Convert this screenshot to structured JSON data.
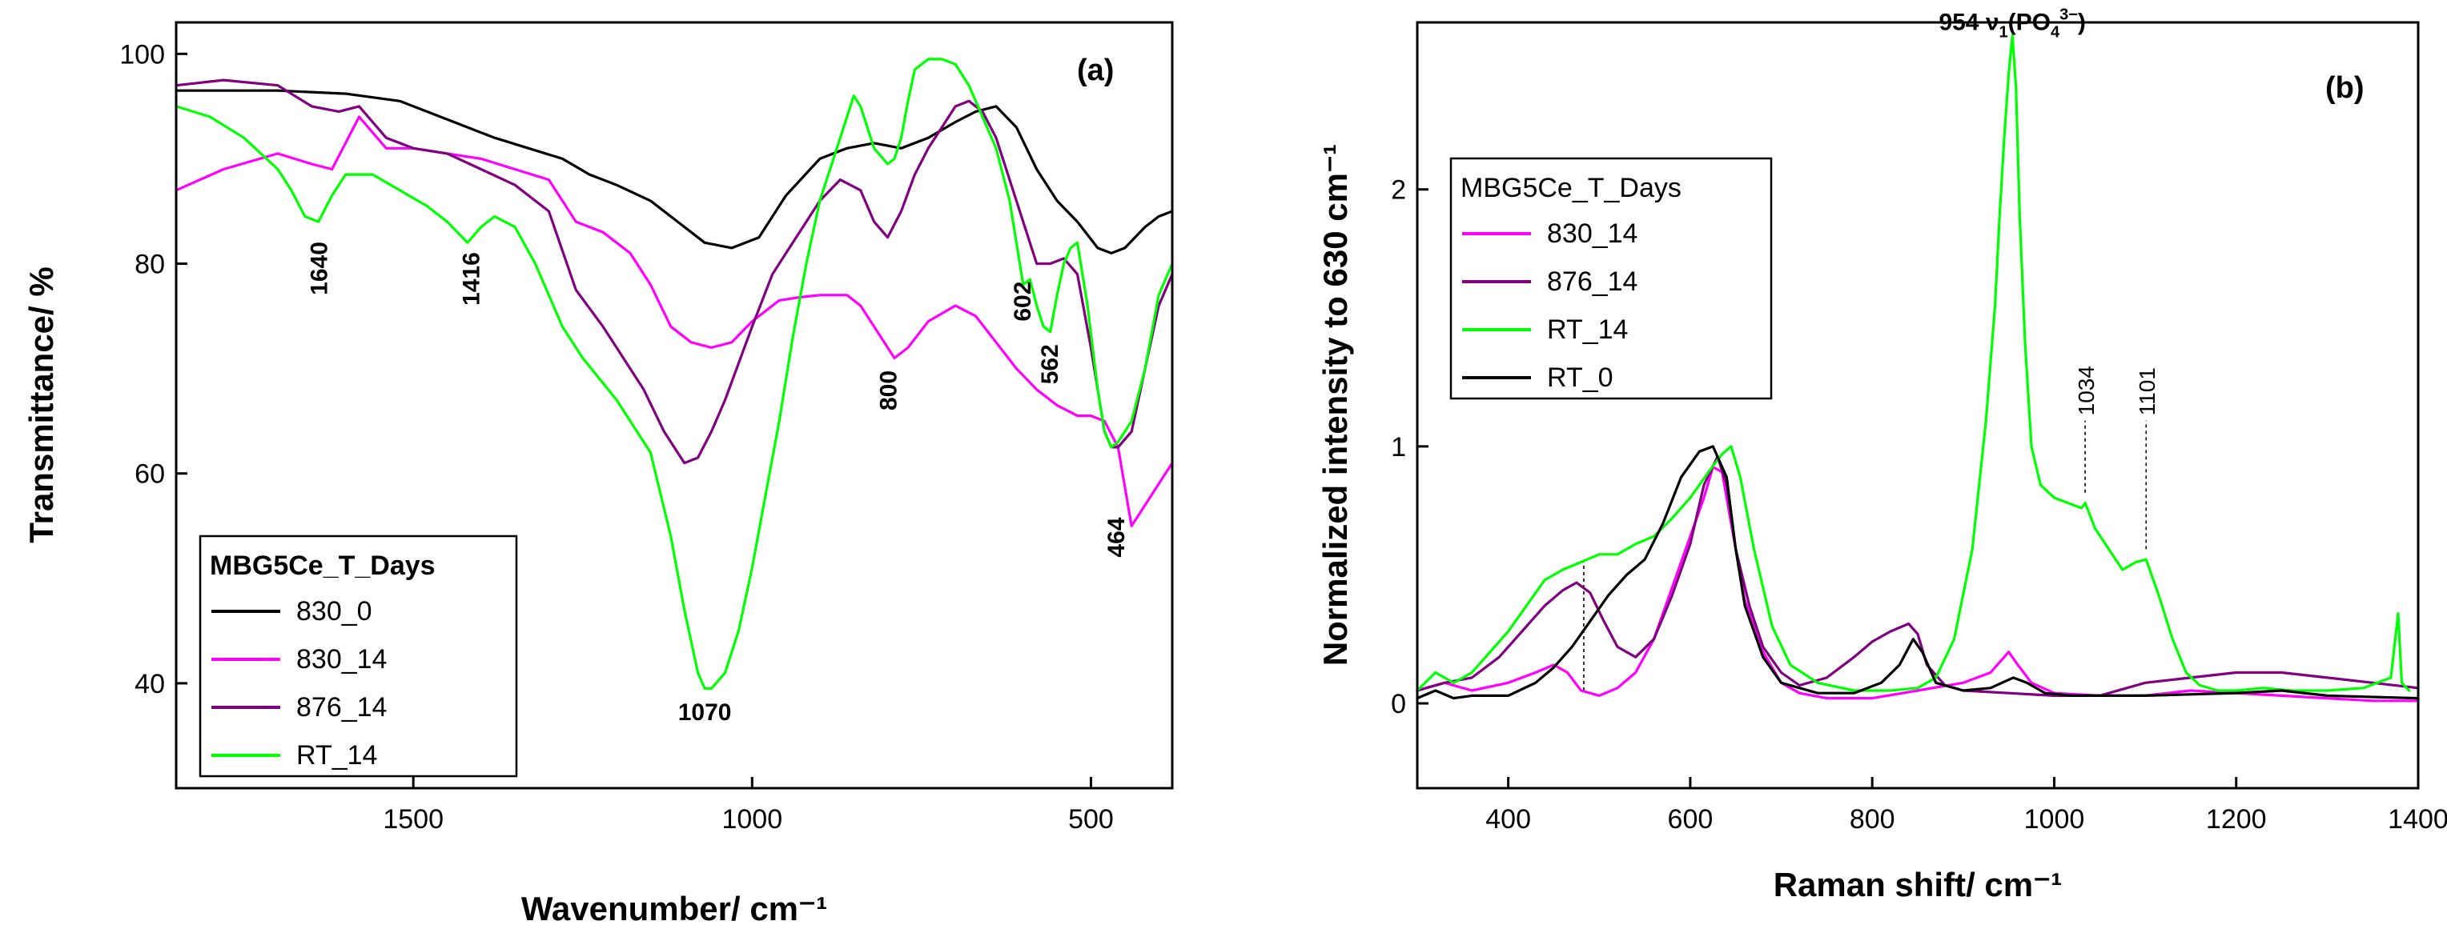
{
  "chart_data": [
    {
      "panel_label": "(a)",
      "type": "line",
      "title": "",
      "xlabel": "Wavenumber/ cm⁻¹",
      "ylabel": "Transmittance/ %",
      "xlim": [
        1850,
        380
      ],
      "ylim": [
        30,
        103
      ],
      "xticks": [
        1500,
        1000,
        500
      ],
      "yticks": [
        40,
        60,
        80,
        100
      ],
      "legend": {
        "title": "MBG5Ce_T_Days",
        "position": "bottom-left",
        "entries": [
          "830_0",
          "830_14",
          "876_14",
          "RT_14"
        ]
      },
      "annotations": [
        {
          "text": "1640",
          "x": 1640,
          "y": 77,
          "rotate": true
        },
        {
          "text": "1416",
          "x": 1416,
          "y": 76,
          "rotate": true
        },
        {
          "text": "1070",
          "x": 1070,
          "y": 36.5,
          "rotate": false
        },
        {
          "text": "800",
          "x": 800,
          "y": 66,
          "rotate": true
        },
        {
          "text": "602",
          "x": 602,
          "y": 74.5,
          "rotate": true
        },
        {
          "text": "562",
          "x": 562,
          "y": 68.5,
          "rotate": true
        },
        {
          "text": "464",
          "x": 464,
          "y": 52,
          "rotate": true
        }
      ],
      "series": [
        {
          "name": "830_0",
          "color": "#000000",
          "x": [
            1850,
            1700,
            1600,
            1520,
            1480,
            1420,
            1380,
            1330,
            1280,
            1240,
            1200,
            1150,
            1100,
            1070,
            1030,
            990,
            950,
            900,
            860,
            820,
            780,
            740,
            700,
            670,
            640,
            610,
            580,
            550,
            520,
            490,
            470,
            450,
            420,
            400,
            380
          ],
          "y": [
            96.5,
            96.5,
            96.2,
            95.5,
            94.5,
            93,
            92,
            91,
            90,
            88.5,
            87.5,
            86,
            83.5,
            82,
            81.5,
            82.5,
            86.5,
            90,
            91,
            91.5,
            91,
            92,
            93.5,
            94.5,
            95,
            93,
            89,
            86,
            84,
            81.5,
            81,
            81.5,
            83.5,
            84.5,
            85
          ]
        },
        {
          "name": "830_14",
          "color": "#ff00ff",
          "x": [
            1850,
            1780,
            1700,
            1650,
            1620,
            1580,
            1540,
            1500,
            1450,
            1400,
            1350,
            1300,
            1260,
            1220,
            1180,
            1150,
            1120,
            1090,
            1060,
            1030,
            1000,
            960,
            930,
            900,
            860,
            840,
            810,
            790,
            770,
            740,
            700,
            670,
            640,
            610,
            580,
            550,
            520,
            500,
            480,
            460,
            440,
            400,
            380
          ],
          "y": [
            87,
            89,
            90.5,
            89.5,
            89,
            94,
            91,
            91,
            90.5,
            90,
            89,
            88,
            84,
            83,
            81,
            78,
            74,
            72.5,
            72,
            72.5,
            74.5,
            76.5,
            76.8,
            77,
            77,
            76,
            73,
            71,
            72,
            74.5,
            76,
            75,
            72.5,
            70,
            68,
            66.5,
            65.5,
            65.5,
            65,
            62.5,
            55,
            59,
            61
          ]
        },
        {
          "name": "876_14",
          "color": "#800080",
          "x": [
            1850,
            1780,
            1700,
            1650,
            1610,
            1580,
            1540,
            1500,
            1450,
            1400,
            1350,
            1300,
            1260,
            1220,
            1190,
            1160,
            1130,
            1100,
            1080,
            1060,
            1040,
            1000,
            970,
            940,
            900,
            870,
            840,
            820,
            800,
            780,
            760,
            740,
            720,
            700,
            680,
            660,
            640,
            620,
            600,
            580,
            560,
            540,
            520,
            500,
            480,
            470,
            460,
            440,
            420,
            400,
            380
          ],
          "y": [
            97,
            97.5,
            97,
            95,
            94.5,
            95,
            92,
            91,
            90.5,
            89,
            87.5,
            85,
            77.5,
            74,
            71,
            68,
            64,
            61,
            61.5,
            64,
            67,
            74,
            79,
            82,
            86,
            88,
            87,
            84,
            82.5,
            85,
            88.5,
            91,
            93,
            95,
            95.5,
            94.5,
            92,
            88,
            84,
            80,
            80,
            80.5,
            79,
            72,
            64,
            62.5,
            62.5,
            64,
            70,
            76,
            79
          ]
        },
        {
          "name": "RT_14",
          "color": "#00ff00",
          "x": [
            1850,
            1800,
            1750,
            1700,
            1680,
            1660,
            1640,
            1620,
            1600,
            1560,
            1520,
            1480,
            1450,
            1420,
            1400,
            1380,
            1350,
            1320,
            1300,
            1280,
            1250,
            1200,
            1150,
            1120,
            1100,
            1080,
            1070,
            1060,
            1040,
            1020,
            1000,
            980,
            960,
            940,
            920,
            900,
            880,
            860,
            850,
            840,
            820,
            800,
            790,
            780,
            770,
            760,
            740,
            720,
            700,
            680,
            660,
            640,
            620,
            610,
            600,
            590,
            580,
            570,
            560,
            550,
            540,
            530,
            520,
            505,
            490,
            480,
            470,
            460,
            440,
            420,
            400,
            380
          ],
          "y": [
            95,
            94,
            92,
            89,
            87,
            84.5,
            84,
            86.5,
            88.5,
            88.5,
            87,
            85.5,
            84,
            82,
            83.5,
            84.5,
            83.5,
            80,
            77,
            74,
            71,
            67,
            62,
            54,
            47,
            41,
            39.5,
            39.5,
            41,
            45,
            51,
            58,
            65,
            73,
            80,
            86,
            90,
            94,
            96,
            95,
            91,
            89.5,
            90,
            92,
            95.5,
            98.5,
            99.5,
            99.5,
            99,
            97,
            94,
            91,
            86,
            82,
            78,
            78.5,
            76,
            74,
            73.5,
            77,
            80,
            81.5,
            82,
            76,
            68,
            64,
            62.5,
            63,
            65,
            70,
            77,
            80
          ]
        }
      ]
    },
    {
      "panel_label": "(b)",
      "type": "line",
      "title": "",
      "xlabel": "Raman shift/ cm⁻¹",
      "ylabel": "Normalized intensity to 630 cm⁻¹",
      "xlim": [
        300,
        1400
      ],
      "ylim": [
        -0.33,
        2.65
      ],
      "xticks": [
        400,
        600,
        800,
        1000,
        1200,
        1400
      ],
      "yticks": [
        0,
        1,
        2
      ],
      "legend": {
        "title": "MBG5Ce_T_Days",
        "position": "top-left",
        "entries": [
          "830_14",
          "876_14",
          "RT_14",
          "RT_0"
        ]
      },
      "annotations": [
        {
          "text": "954 ν",
          "sub": "1",
          "tail": "(PO",
          "sub2": "4",
          "sup": "3−",
          "end": ")",
          "x": 954,
          "y": 2.62
        },
        {
          "text": "1034",
          "x": 1034,
          "y": 1.12,
          "rotate": true
        },
        {
          "text": "1101",
          "x": 1101,
          "y": 1.12,
          "rotate": true
        }
      ],
      "guides": [
        {
          "x": 483,
          "y0": 0.05,
          "y1": 0.55
        },
        {
          "x": 1034,
          "y0": 0.82,
          "y1": 1.1
        },
        {
          "x": 1101,
          "y0": 0.6,
          "y1": 1.1
        }
      ],
      "series": [
        {
          "name": "830_14",
          "color": "#ff00ff",
          "x": [
            300,
            330,
            360,
            400,
            430,
            450,
            465,
            480,
            500,
            520,
            540,
            560,
            580,
            600,
            615,
            625,
            635,
            645,
            660,
            680,
            700,
            720,
            750,
            800,
            850,
            900,
            930,
            950,
            960,
            975,
            1000,
            1050,
            1100,
            1150,
            1200,
            1250,
            1300,
            1350,
            1400
          ],
          "y": [
            0.05,
            0.08,
            0.05,
            0.08,
            0.12,
            0.15,
            0.12,
            0.05,
            0.03,
            0.06,
            0.12,
            0.25,
            0.45,
            0.65,
            0.8,
            0.92,
            0.9,
            0.7,
            0.4,
            0.2,
            0.08,
            0.04,
            0.02,
            0.02,
            0.05,
            0.08,
            0.12,
            0.2,
            0.15,
            0.08,
            0.04,
            0.03,
            0.03,
            0.05,
            0.04,
            0.03,
            0.02,
            0.01,
            0.01
          ]
        },
        {
          "name": "876_14",
          "color": "#800080",
          "x": [
            300,
            330,
            360,
            390,
            420,
            440,
            460,
            475,
            490,
            505,
            520,
            540,
            560,
            580,
            600,
            615,
            630,
            640,
            650,
            665,
            680,
            700,
            720,
            750,
            780,
            800,
            820,
            840,
            850,
            860,
            880,
            900,
            950,
            1000,
            1050,
            1100,
            1150,
            1200,
            1250,
            1300,
            1350,
            1400
          ],
          "y": [
            0.05,
            0.08,
            0.1,
            0.18,
            0.3,
            0.38,
            0.44,
            0.47,
            0.43,
            0.32,
            0.22,
            0.18,
            0.25,
            0.42,
            0.62,
            0.85,
            0.96,
            0.85,
            0.6,
            0.38,
            0.22,
            0.12,
            0.07,
            0.1,
            0.18,
            0.24,
            0.28,
            0.31,
            0.27,
            0.15,
            0.07,
            0.05,
            0.04,
            0.03,
            0.03,
            0.08,
            0.1,
            0.12,
            0.12,
            0.1,
            0.08,
            0.06
          ]
        },
        {
          "name": "RT_14",
          "color": "#00ff00",
          "x": [
            300,
            320,
            340,
            360,
            380,
            400,
            420,
            440,
            460,
            480,
            500,
            520,
            540,
            560,
            580,
            600,
            620,
            635,
            645,
            655,
            670,
            690,
            710,
            740,
            780,
            820,
            850,
            870,
            890,
            910,
            925,
            935,
            940,
            945,
            950,
            954,
            958,
            962,
            968,
            975,
            985,
            1000,
            1015,
            1030,
            1034,
            1045,
            1060,
            1075,
            1090,
            1101,
            1115,
            1130,
            1145,
            1160,
            1180,
            1200,
            1230,
            1260,
            1300,
            1340,
            1370,
            1378,
            1382,
            1390
          ],
          "y": [
            0.05,
            0.12,
            0.08,
            0.12,
            0.2,
            0.28,
            0.38,
            0.48,
            0.52,
            0.55,
            0.58,
            0.58,
            0.62,
            0.65,
            0.72,
            0.8,
            0.9,
            0.97,
            1.0,
            0.88,
            0.6,
            0.3,
            0.15,
            0.08,
            0.05,
            0.05,
            0.06,
            0.1,
            0.25,
            0.6,
            1.1,
            1.55,
            1.9,
            2.2,
            2.45,
            2.6,
            2.4,
            1.9,
            1.4,
            1.0,
            0.85,
            0.8,
            0.78,
            0.76,
            0.78,
            0.68,
            0.6,
            0.52,
            0.55,
            0.56,
            0.42,
            0.25,
            0.12,
            0.07,
            0.05,
            0.05,
            0.06,
            0.05,
            0.05,
            0.06,
            0.1,
            0.35,
            0.08,
            0.05
          ]
        },
        {
          "name": "RT_0",
          "color": "#000000",
          "x": [
            300,
            320,
            340,
            360,
            400,
            430,
            450,
            470,
            490,
            510,
            530,
            550,
            570,
            590,
            610,
            625,
            640,
            650,
            660,
            680,
            700,
            740,
            780,
            810,
            830,
            845,
            855,
            870,
            900,
            930,
            955,
            970,
            990,
            1020,
            1100,
            1200,
            1250,
            1300,
            1400
          ],
          "y": [
            0.02,
            0.05,
            0.02,
            0.03,
            0.03,
            0.08,
            0.14,
            0.22,
            0.32,
            0.42,
            0.5,
            0.56,
            0.7,
            0.88,
            0.98,
            1.0,
            0.88,
            0.6,
            0.38,
            0.18,
            0.08,
            0.04,
            0.04,
            0.08,
            0.15,
            0.25,
            0.2,
            0.08,
            0.05,
            0.06,
            0.1,
            0.08,
            0.04,
            0.03,
            0.03,
            0.04,
            0.05,
            0.03,
            0.02
          ]
        }
      ]
    }
  ]
}
